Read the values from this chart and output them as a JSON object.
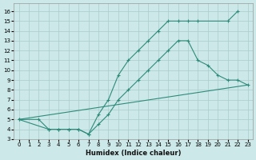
{
  "xlabel": "Humidex (Indice chaleur)",
  "bg_color": "#cce8e8",
  "line_color": "#2e8b7a",
  "grid_color": "#aacccc",
  "xlim": [
    -0.5,
    23.5
  ],
  "ylim": [
    3,
    16.8
  ],
  "xticks": [
    0,
    1,
    2,
    3,
    4,
    5,
    6,
    7,
    8,
    9,
    10,
    11,
    12,
    13,
    14,
    15,
    16,
    17,
    18,
    19,
    20,
    21,
    22,
    23
  ],
  "yticks": [
    3,
    4,
    5,
    6,
    7,
    8,
    9,
    10,
    11,
    12,
    13,
    14,
    15,
    16
  ],
  "line1_x": [
    0,
    2,
    3,
    4,
    5,
    6,
    7,
    8,
    9,
    10,
    11,
    12,
    13,
    14,
    15,
    16,
    17,
    18,
    21,
    22
  ],
  "line1_y": [
    5,
    5,
    4,
    4,
    4,
    4,
    3.5,
    5.5,
    7,
    9.5,
    11,
    12,
    13,
    14,
    15,
    15,
    15,
    15,
    15,
    16
  ],
  "line2_x": [
    0,
    3,
    4,
    5,
    6,
    7,
    8,
    9,
    10,
    11,
    12,
    13,
    14,
    15,
    16,
    17,
    18,
    19,
    20,
    21,
    22,
    23
  ],
  "line2_y": [
    5,
    4,
    4,
    4,
    4,
    3.5,
    4.5,
    5.5,
    7,
    8,
    9,
    10,
    11,
    12,
    13,
    13,
    11,
    10.5,
    9.5,
    9,
    9,
    8.5
  ],
  "line3_x": [
    0,
    23
  ],
  "line3_y": [
    5,
    8.5
  ]
}
